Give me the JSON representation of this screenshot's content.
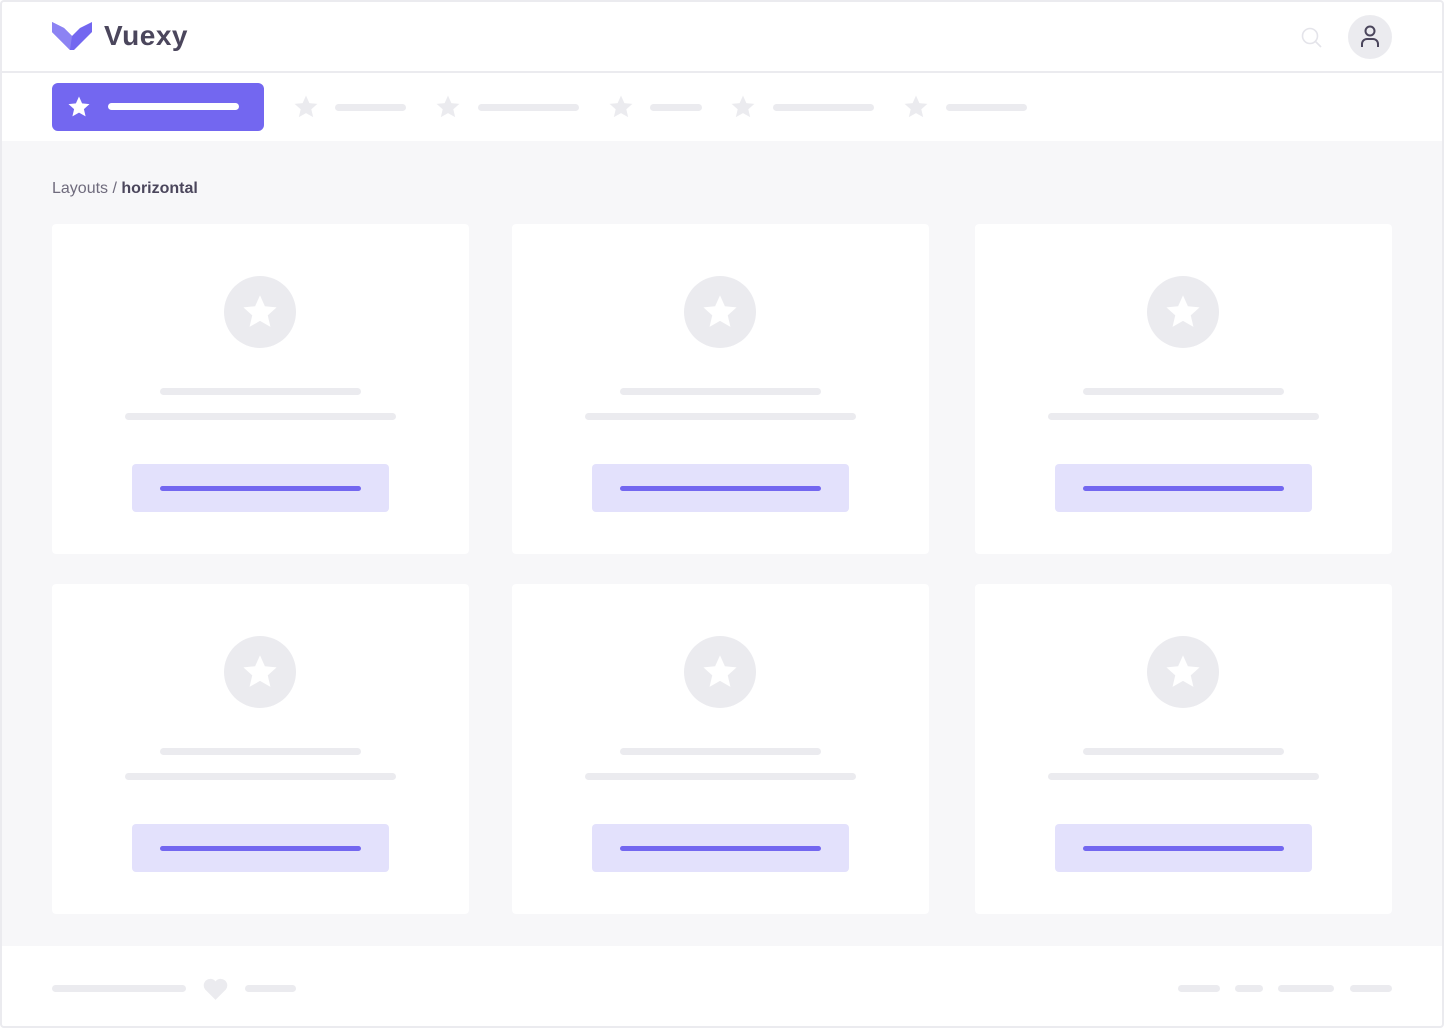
{
  "brand": {
    "name": "Vuexy"
  },
  "colors": {
    "primary": "#7367f0",
    "primary_light": "#e3e1fc",
    "placeholder": "#ebebef",
    "background": "#f7f7f9"
  },
  "header": {
    "icons": [
      "search-icon",
      "user-icon"
    ]
  },
  "nav": {
    "active_icon": "star-icon",
    "items": 5,
    "item_icon": "star-icon"
  },
  "breadcrumb": {
    "parent": "Layouts",
    "separator": " / ",
    "current": "horizontal"
  },
  "cards": [
    {
      "icon": "star-icon"
    },
    {
      "icon": "star-icon"
    },
    {
      "icon": "star-icon"
    },
    {
      "icon": "star-icon"
    },
    {
      "icon": "star-icon"
    },
    {
      "icon": "star-icon"
    }
  ],
  "footer": {
    "icon": "heart-icon"
  }
}
